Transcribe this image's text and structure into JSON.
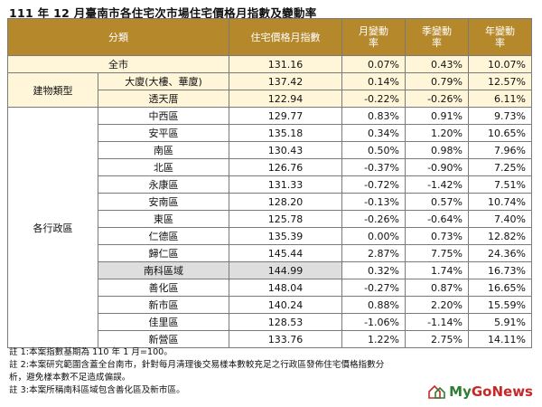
{
  "title": "111 年 12 月臺南市各住宅次市場住宅價格月指數及變動率",
  "header": {
    "category": "分類",
    "index": "住宅價格月指數",
    "monthly": [
      "月變動",
      "率"
    ],
    "quarterly": [
      "季變動",
      "率"
    ],
    "yearly": [
      "年變動",
      "率"
    ]
  },
  "all_row": {
    "label": "全市",
    "index": "131.16",
    "m": "0.07%",
    "q": "0.43%",
    "y": "10.07%"
  },
  "building_type": {
    "group": "建物類型",
    "rows": [
      {
        "label": "大廈(大樓、華廈)",
        "index": "137.42",
        "m": "0.14%",
        "q": "0.79%",
        "y": "12.57%"
      },
      {
        "label": "透天厝",
        "index": "122.94",
        "m": "-0.22%",
        "q": "-0.26%",
        "y": "6.11%"
      }
    ]
  },
  "districts": {
    "group": "各行政區",
    "rows": [
      {
        "label": "中西區",
        "index": "129.77",
        "m": "0.83%",
        "q": "0.91%",
        "y": "9.73%"
      },
      {
        "label": "安平區",
        "index": "135.18",
        "m": "0.34%",
        "q": "1.20%",
        "y": "10.65%"
      },
      {
        "label": "南區",
        "index": "130.43",
        "m": "0.50%",
        "q": "0.98%",
        "y": "7.96%"
      },
      {
        "label": "北區",
        "index": "126.76",
        "m": "-0.37%",
        "q": "-0.90%",
        "y": "7.25%"
      },
      {
        "label": "永康區",
        "index": "131.33",
        "m": "-0.72%",
        "q": "-1.42%",
        "y": "7.51%"
      },
      {
        "label": "安南區",
        "index": "128.20",
        "m": "-0.13%",
        "q": "0.57%",
        "y": "10.74%"
      },
      {
        "label": "東區",
        "index": "125.78",
        "m": "-0.26%",
        "q": "-0.64%",
        "y": "7.40%"
      },
      {
        "label": "仁德區",
        "index": "135.39",
        "m": "0.00%",
        "q": "0.73%",
        "y": "12.82%"
      },
      {
        "label": "歸仁區",
        "index": "145.44",
        "m": "2.87%",
        "q": "7.75%",
        "y": "24.36%"
      },
      {
        "label": "南科區域",
        "index": "144.99",
        "m": "0.32%",
        "q": "1.74%",
        "y": "16.73%"
      },
      {
        "label": "善化區",
        "index": "148.04",
        "m": "-0.27%",
        "q": "0.87%",
        "y": "16.65%"
      },
      {
        "label": "新市區",
        "index": "140.24",
        "m": "0.88%",
        "q": "2.20%",
        "y": "15.59%"
      },
      {
        "label": "佳里區",
        "index": "128.53",
        "m": "-1.06%",
        "q": "-1.14%",
        "y": "5.91%"
      },
      {
        "label": "新營區",
        "index": "133.76",
        "m": "1.22%",
        "q": "2.75%",
        "y": "14.11%"
      }
    ]
  },
  "notes": [
    "註 1:本案指數基期為 110 年 1 月=100。",
    "註 2:本案研究範圍含蓋全台南市，針對每月清理後交易樣本數較充足之行政區發佈住宅價格指數分",
    "析，避免樣本數不足造成偏誤。",
    "註 3:本案所稱南科區域包含善化區及新市區。"
  ],
  "logo": {
    "part1": "My",
    "part2": "GoNews",
    "icon": "house-icon"
  }
}
